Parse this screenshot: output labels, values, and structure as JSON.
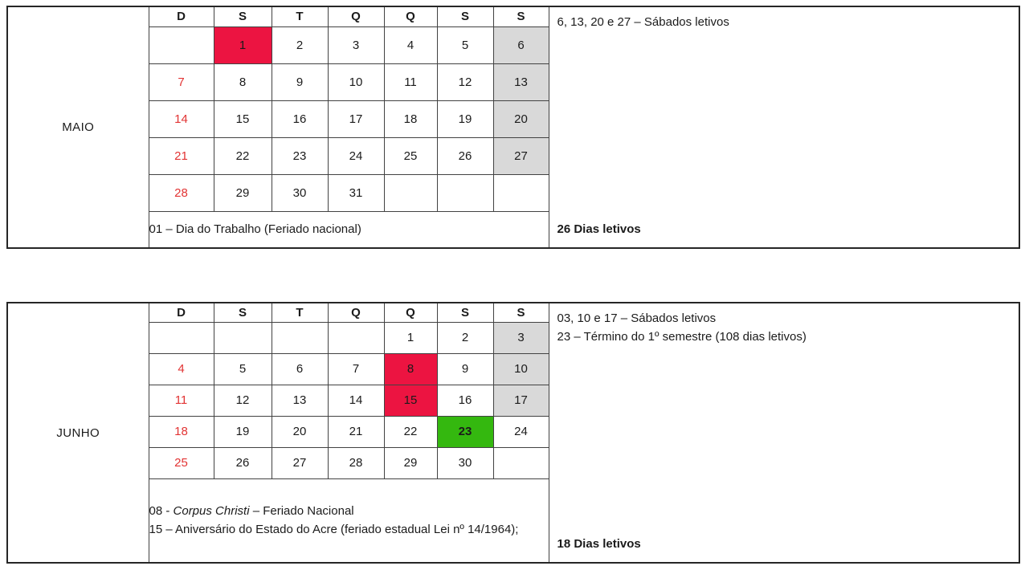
{
  "colors": {
    "holiday_bg": "#EC1441",
    "saturday_bg": "#D9D9D9",
    "semester_end_bg": "#34B80F",
    "sunday_text": "#E23333",
    "text": "#1B1B1B",
    "grid_border": "#424242",
    "outer_border": "#262626"
  },
  "months": [
    {
      "name": "MAIO",
      "day_headers": [
        "D",
        "S",
        "T",
        "Q",
        "Q",
        "S",
        "S"
      ],
      "weeks": [
        [
          {
            "v": ""
          },
          {
            "v": "1",
            "s": "holiday"
          },
          {
            "v": "2"
          },
          {
            "v": "3"
          },
          {
            "v": "4"
          },
          {
            "v": "5"
          },
          {
            "v": "6",
            "s": "saturday"
          }
        ],
        [
          {
            "v": "7",
            "s": "sunday"
          },
          {
            "v": "8"
          },
          {
            "v": "9"
          },
          {
            "v": "10"
          },
          {
            "v": "11"
          },
          {
            "v": "12"
          },
          {
            "v": "13",
            "s": "saturday"
          }
        ],
        [
          {
            "v": "14",
            "s": "sunday"
          },
          {
            "v": "15"
          },
          {
            "v": "16"
          },
          {
            "v": "17"
          },
          {
            "v": "18"
          },
          {
            "v": "19"
          },
          {
            "v": "20",
            "s": "saturday"
          }
        ],
        [
          {
            "v": "21",
            "s": "sunday"
          },
          {
            "v": "22"
          },
          {
            "v": "23"
          },
          {
            "v": "24"
          },
          {
            "v": "25"
          },
          {
            "v": "26"
          },
          {
            "v": "27",
            "s": "saturday"
          }
        ],
        [
          {
            "v": "28",
            "s": "sunday"
          },
          {
            "v": "29"
          },
          {
            "v": "30"
          },
          {
            "v": "31"
          },
          {
            "v": ""
          },
          {
            "v": ""
          },
          {
            "v": ""
          }
        ]
      ],
      "footer_lines": [
        [
          {
            "t": "01 – Dia do Trabalho (Feriado nacional)"
          }
        ]
      ],
      "side_notes": [
        "6, 13, 20 e 27 – Sábados letivos"
      ],
      "total_label": "26 Dias letivos"
    },
    {
      "name": "JUNHO",
      "day_headers": [
        "D",
        "S",
        "T",
        "Q",
        "Q",
        "S",
        "S"
      ],
      "weeks": [
        [
          {
            "v": ""
          },
          {
            "v": ""
          },
          {
            "v": ""
          },
          {
            "v": ""
          },
          {
            "v": "1"
          },
          {
            "v": "2"
          },
          {
            "v": "3",
            "s": "saturday"
          }
        ],
        [
          {
            "v": "4",
            "s": "sunday"
          },
          {
            "v": "5"
          },
          {
            "v": "6"
          },
          {
            "v": "7"
          },
          {
            "v": "8",
            "s": "holiday"
          },
          {
            "v": "9"
          },
          {
            "v": "10",
            "s": "saturday"
          }
        ],
        [
          {
            "v": "11",
            "s": "sunday"
          },
          {
            "v": "12"
          },
          {
            "v": "13"
          },
          {
            "v": "14"
          },
          {
            "v": "15",
            "s": "holiday"
          },
          {
            "v": "16"
          },
          {
            "v": "17",
            "s": "saturday"
          }
        ],
        [
          {
            "v": "18",
            "s": "sunday"
          },
          {
            "v": "19"
          },
          {
            "v": "20"
          },
          {
            "v": "21"
          },
          {
            "v": "22"
          },
          {
            "v": "23",
            "s": "semester_end"
          },
          {
            "v": "24"
          }
        ],
        [
          {
            "v": "25",
            "s": "sunday"
          },
          {
            "v": "26"
          },
          {
            "v": "27"
          },
          {
            "v": "28"
          },
          {
            "v": "29"
          },
          {
            "v": "30"
          },
          {
            "v": ""
          }
        ]
      ],
      "footer_lines": [
        [
          {
            "t": "08 - "
          },
          {
            "t": "Corpus Christi",
            "italic": true
          },
          {
            "t": " – Feriado Nacional"
          }
        ],
        [
          {
            "t": "15 – Aniversário do Estado do Acre (feriado estadual Lei nº 14/1964);"
          }
        ]
      ],
      "side_notes": [
        "03, 10 e 17 – Sábados letivos",
        "23 – Término do 1º semestre (108 dias letivos)"
      ],
      "total_label": "18 Dias letivos"
    }
  ]
}
